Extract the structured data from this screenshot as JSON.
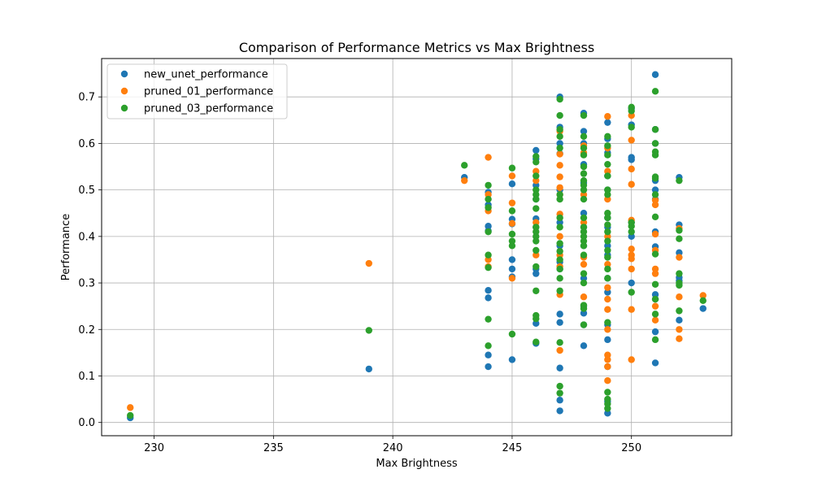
{
  "chart_data": {
    "type": "scatter",
    "title": "Comparison of Performance Metrics vs Max Brightness",
    "xlabel": "Max Brightness",
    "ylabel": "Performance",
    "xlim": [
      227.8,
      254.2
    ],
    "ylim": [
      -0.0285,
      0.7825
    ],
    "xticks": [
      230,
      235,
      240,
      245,
      250
    ],
    "yticks": [
      0.0,
      0.1,
      0.2,
      0.3,
      0.4,
      0.5,
      0.6,
      0.7
    ],
    "xtick_labels": [
      "230",
      "235",
      "240",
      "245",
      "250"
    ],
    "ytick_labels": [
      "0.0",
      "0.1",
      "0.2",
      "0.3",
      "0.4",
      "0.5",
      "0.6",
      "0.7"
    ],
    "grid": true,
    "legend_position": "top-left",
    "series": [
      {
        "name": "new_unet_performance",
        "color": "#1f77b4",
        "points": [
          [
            229,
            0.01
          ],
          [
            239,
            0.115
          ],
          [
            243,
            0.527
          ],
          [
            244,
            0.12
          ],
          [
            244,
            0.145
          ],
          [
            244,
            0.268
          ],
          [
            244,
            0.284
          ],
          [
            244,
            0.412
          ],
          [
            244,
            0.422
          ],
          [
            244,
            0.468
          ],
          [
            244,
            0.495
          ],
          [
            245,
            0.135
          ],
          [
            245,
            0.313
          ],
          [
            245,
            0.33
          ],
          [
            245,
            0.35
          ],
          [
            245,
            0.427
          ],
          [
            245,
            0.437
          ],
          [
            245,
            0.513
          ],
          [
            246,
            0.17
          ],
          [
            246,
            0.213
          ],
          [
            246,
            0.32
          ],
          [
            246,
            0.33
          ],
          [
            246,
            0.42
          ],
          [
            246,
            0.438
          ],
          [
            246,
            0.48
          ],
          [
            246,
            0.51
          ],
          [
            246,
            0.567
          ],
          [
            246,
            0.585
          ],
          [
            247,
            0.025
          ],
          [
            247,
            0.048
          ],
          [
            247,
            0.117
          ],
          [
            247,
            0.215
          ],
          [
            247,
            0.233
          ],
          [
            247,
            0.33
          ],
          [
            247,
            0.345
          ],
          [
            247,
            0.38
          ],
          [
            247,
            0.43
          ],
          [
            247,
            0.5
          ],
          [
            247,
            0.578
          ],
          [
            247,
            0.6
          ],
          [
            247,
            0.635
          ],
          [
            247,
            0.7
          ],
          [
            248,
            0.165
          ],
          [
            248,
            0.21
          ],
          [
            248,
            0.235
          ],
          [
            248,
            0.25
          ],
          [
            248,
            0.31
          ],
          [
            248,
            0.38
          ],
          [
            248,
            0.42
          ],
          [
            248,
            0.45
          ],
          [
            248,
            0.515
          ],
          [
            248,
            0.555
          ],
          [
            248,
            0.6
          ],
          [
            248,
            0.626
          ],
          [
            248,
            0.665
          ],
          [
            249,
            0.02
          ],
          [
            249,
            0.045
          ],
          [
            249,
            0.12
          ],
          [
            249,
            0.178
          ],
          [
            249,
            0.21
          ],
          [
            249,
            0.28
          ],
          [
            249,
            0.31
          ],
          [
            249,
            0.36
          ],
          [
            249,
            0.38
          ],
          [
            249,
            0.42
          ],
          [
            249,
            0.44
          ],
          [
            249,
            0.5
          ],
          [
            249,
            0.53
          ],
          [
            249,
            0.58
          ],
          [
            249,
            0.61
          ],
          [
            249,
            0.645
          ],
          [
            250,
            0.3
          ],
          [
            250,
            0.4
          ],
          [
            250,
            0.43
          ],
          [
            250,
            0.565
          ],
          [
            250,
            0.57
          ],
          [
            250,
            0.64
          ],
          [
            250,
            0.675
          ],
          [
            251,
            0.128
          ],
          [
            251,
            0.195
          ],
          [
            251,
            0.265
          ],
          [
            251,
            0.275
          ],
          [
            251,
            0.378
          ],
          [
            251,
            0.41
          ],
          [
            251,
            0.48
          ],
          [
            251,
            0.5
          ],
          [
            251,
            0.52
          ],
          [
            251,
            0.6
          ],
          [
            251,
            0.63
          ],
          [
            251,
            0.748
          ],
          [
            252,
            0.22
          ],
          [
            252,
            0.305
          ],
          [
            252,
            0.312
          ],
          [
            252,
            0.365
          ],
          [
            252,
            0.425
          ],
          [
            252,
            0.527
          ],
          [
            253,
            0.245
          ]
        ]
      },
      {
        "name": "pruned_01_performance",
        "color": "#ff7f0e",
        "points": [
          [
            229,
            0.032
          ],
          [
            239,
            0.342
          ],
          [
            243,
            0.52
          ],
          [
            244,
            0.335
          ],
          [
            244,
            0.35
          ],
          [
            244,
            0.455
          ],
          [
            244,
            0.49
          ],
          [
            244,
            0.57
          ],
          [
            245,
            0.31
          ],
          [
            245,
            0.428
          ],
          [
            245,
            0.472
          ],
          [
            245,
            0.53
          ],
          [
            246,
            0.36
          ],
          [
            246,
            0.43
          ],
          [
            246,
            0.52
          ],
          [
            246,
            0.54
          ],
          [
            247,
            0.155
          ],
          [
            247,
            0.275
          ],
          [
            247,
            0.335
          ],
          [
            247,
            0.36
          ],
          [
            247,
            0.4
          ],
          [
            247,
            0.448
          ],
          [
            247,
            0.49
          ],
          [
            247,
            0.505
          ],
          [
            247,
            0.528
          ],
          [
            247,
            0.553
          ],
          [
            247,
            0.577
          ],
          [
            247,
            0.626
          ],
          [
            248,
            0.27
          ],
          [
            248,
            0.34
          ],
          [
            248,
            0.355
          ],
          [
            248,
            0.43
          ],
          [
            248,
            0.49
          ],
          [
            248,
            0.58
          ],
          [
            248,
            0.595
          ],
          [
            249,
            0.09
          ],
          [
            249,
            0.12
          ],
          [
            249,
            0.135
          ],
          [
            249,
            0.145
          ],
          [
            249,
            0.2
          ],
          [
            249,
            0.243
          ],
          [
            249,
            0.265
          ],
          [
            249,
            0.29
          ],
          [
            249,
            0.34
          ],
          [
            249,
            0.4
          ],
          [
            249,
            0.48
          ],
          [
            249,
            0.54
          ],
          [
            249,
            0.59
          ],
          [
            249,
            0.658
          ],
          [
            250,
            0.135
          ],
          [
            250,
            0.243
          ],
          [
            250,
            0.33
          ],
          [
            250,
            0.352
          ],
          [
            250,
            0.36
          ],
          [
            250,
            0.373
          ],
          [
            250,
            0.435
          ],
          [
            250,
            0.512
          ],
          [
            250,
            0.545
          ],
          [
            250,
            0.607
          ],
          [
            250,
            0.66
          ],
          [
            251,
            0.22
          ],
          [
            251,
            0.25
          ],
          [
            251,
            0.32
          ],
          [
            251,
            0.33
          ],
          [
            251,
            0.37
          ],
          [
            251,
            0.405
          ],
          [
            251,
            0.468
          ],
          [
            251,
            0.478
          ],
          [
            252,
            0.18
          ],
          [
            252,
            0.2
          ],
          [
            252,
            0.27
          ],
          [
            252,
            0.355
          ],
          [
            252,
            0.417
          ],
          [
            253,
            0.273
          ]
        ]
      },
      {
        "name": "pruned_03_performance",
        "color": "#2ca02c",
        "points": [
          [
            229,
            0.015
          ],
          [
            239,
            0.198
          ],
          [
            243,
            0.553
          ],
          [
            244,
            0.165
          ],
          [
            244,
            0.222
          ],
          [
            244,
            0.333
          ],
          [
            244,
            0.36
          ],
          [
            244,
            0.41
          ],
          [
            244,
            0.462
          ],
          [
            244,
            0.48
          ],
          [
            244,
            0.51
          ],
          [
            245,
            0.19
          ],
          [
            245,
            0.38
          ],
          [
            245,
            0.39
          ],
          [
            245,
            0.405
          ],
          [
            245,
            0.455
          ],
          [
            245,
            0.547
          ],
          [
            246,
            0.173
          ],
          [
            246,
            0.223
          ],
          [
            246,
            0.23
          ],
          [
            246,
            0.283
          ],
          [
            246,
            0.335
          ],
          [
            246,
            0.37
          ],
          [
            246,
            0.39
          ],
          [
            246,
            0.4
          ],
          [
            246,
            0.41
          ],
          [
            246,
            0.42
          ],
          [
            246,
            0.46
          ],
          [
            246,
            0.48
          ],
          [
            246,
            0.49
          ],
          [
            246,
            0.5
          ],
          [
            246,
            0.53
          ],
          [
            246,
            0.56
          ],
          [
            246,
            0.572
          ],
          [
            247,
            0.063
          ],
          [
            247,
            0.078
          ],
          [
            247,
            0.172
          ],
          [
            247,
            0.283
          ],
          [
            247,
            0.31
          ],
          [
            247,
            0.33
          ],
          [
            247,
            0.35
          ],
          [
            247,
            0.368
          ],
          [
            247,
            0.385
          ],
          [
            247,
            0.42
          ],
          [
            247,
            0.44
          ],
          [
            247,
            0.48
          ],
          [
            247,
            0.49
          ],
          [
            247,
            0.59
          ],
          [
            247,
            0.615
          ],
          [
            247,
            0.63
          ],
          [
            247,
            0.66
          ],
          [
            247,
            0.695
          ],
          [
            248,
            0.21
          ],
          [
            248,
            0.245
          ],
          [
            248,
            0.252
          ],
          [
            248,
            0.3
          ],
          [
            248,
            0.32
          ],
          [
            248,
            0.36
          ],
          [
            248,
            0.38
          ],
          [
            248,
            0.39
          ],
          [
            248,
            0.4
          ],
          [
            248,
            0.41
          ],
          [
            248,
            0.42
          ],
          [
            248,
            0.44
          ],
          [
            248,
            0.48
          ],
          [
            248,
            0.5
          ],
          [
            248,
            0.51
          ],
          [
            248,
            0.52
          ],
          [
            248,
            0.535
          ],
          [
            248,
            0.55
          ],
          [
            248,
            0.575
          ],
          [
            248,
            0.59
          ],
          [
            248,
            0.615
          ],
          [
            248,
            0.66
          ],
          [
            249,
            0.03
          ],
          [
            249,
            0.04
          ],
          [
            249,
            0.05
          ],
          [
            249,
            0.065
          ],
          [
            249,
            0.215
          ],
          [
            249,
            0.31
          ],
          [
            249,
            0.33
          ],
          [
            249,
            0.355
          ],
          [
            249,
            0.37
          ],
          [
            249,
            0.39
          ],
          [
            249,
            0.41
          ],
          [
            249,
            0.425
          ],
          [
            249,
            0.44
          ],
          [
            249,
            0.45
          ],
          [
            249,
            0.49
          ],
          [
            249,
            0.5
          ],
          [
            249,
            0.53
          ],
          [
            249,
            0.555
          ],
          [
            249,
            0.575
          ],
          [
            249,
            0.595
          ],
          [
            249,
            0.615
          ],
          [
            250,
            0.28
          ],
          [
            250,
            0.41
          ],
          [
            250,
            0.422
          ],
          [
            250,
            0.43
          ],
          [
            250,
            0.635
          ],
          [
            250,
            0.67
          ],
          [
            250,
            0.678
          ],
          [
            251,
            0.178
          ],
          [
            251,
            0.233
          ],
          [
            251,
            0.265
          ],
          [
            251,
            0.297
          ],
          [
            251,
            0.362
          ],
          [
            251,
            0.442
          ],
          [
            251,
            0.49
          ],
          [
            251,
            0.525
          ],
          [
            251,
            0.528
          ],
          [
            251,
            0.575
          ],
          [
            251,
            0.582
          ],
          [
            251,
            0.6
          ],
          [
            251,
            0.63
          ],
          [
            251,
            0.712
          ],
          [
            252,
            0.24
          ],
          [
            252,
            0.295
          ],
          [
            252,
            0.3
          ],
          [
            252,
            0.32
          ],
          [
            252,
            0.395
          ],
          [
            252,
            0.413
          ],
          [
            252,
            0.52
          ],
          [
            253,
            0.262
          ]
        ]
      }
    ]
  }
}
